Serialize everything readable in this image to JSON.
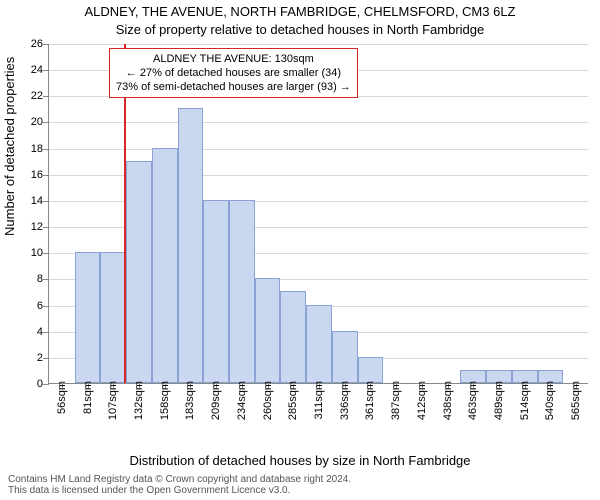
{
  "title_line1": "ALDNEY, THE AVENUE, NORTH FAMBRIDGE, CHELMSFORD, CM3 6LZ",
  "title_line2": "Size of property relative to detached houses in North Fambridge",
  "ylabel": "Number of detached properties",
  "xlabel": "Distribution of detached houses by size in North Fambridge",
  "footer_line1": "Contains HM Land Registry data © Crown copyright and database right 2024.",
  "footer_line2": "This data is licensed under the Open Government Licence v3.0.",
  "chart": {
    "type": "bar",
    "categories": [
      "56sqm",
      "81sqm",
      "107sqm",
      "132sqm",
      "158sqm",
      "183sqm",
      "209sqm",
      "234sqm",
      "260sqm",
      "285sqm",
      "311sqm",
      "336sqm",
      "361sqm",
      "387sqm",
      "412sqm",
      "438sqm",
      "463sqm",
      "489sqm",
      "514sqm",
      "540sqm",
      "565sqm"
    ],
    "values": [
      0,
      10,
      10,
      17,
      18,
      21,
      14,
      14,
      8,
      7,
      6,
      4,
      2,
      0,
      0,
      0,
      1,
      1,
      1,
      1,
      0
    ],
    "ylim": [
      0,
      26
    ],
    "ytick_step": 2,
    "bar_fill": "#c9d7f0",
    "bar_stroke": "#8aa3d4",
    "grid_color": "#d9d9d9",
    "axis_color": "#888888",
    "background_color": "#ffffff",
    "bar_width_ratio": 1.0
  },
  "reference": {
    "value_sqm": 130,
    "bin_start": 56,
    "bin_width": 25.5,
    "line_color": "#d62728"
  },
  "annotation": {
    "line1": "ALDNEY THE AVENUE: 130sqm",
    "line2": "← 27% of detached houses are smaller (34)",
    "line3": "73% of semi-detached houses are larger (93) →",
    "border_color": "#d62728"
  }
}
